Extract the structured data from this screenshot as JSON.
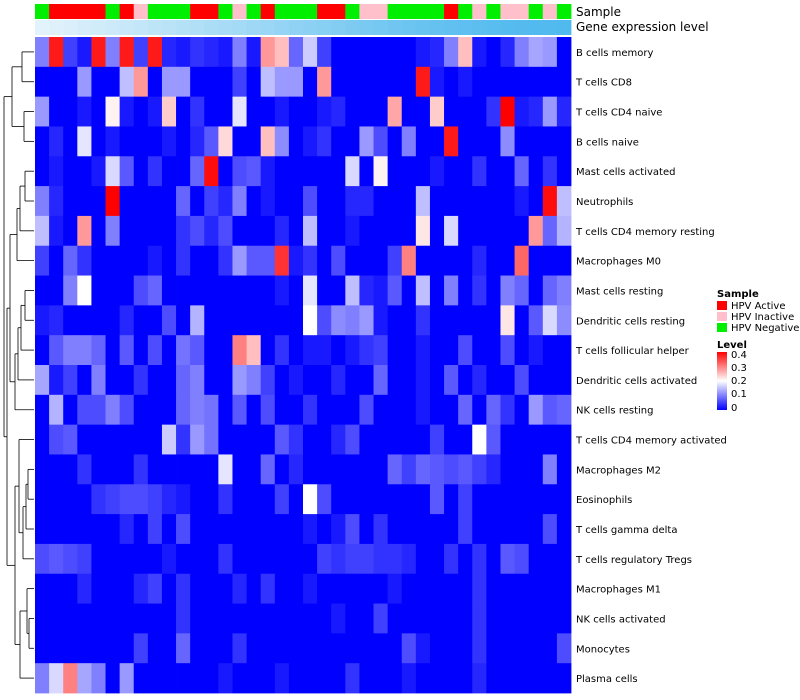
{
  "chart_data": {
    "type": "heatmap",
    "title": "",
    "annotation_tracks": {
      "sample_label": "Sample",
      "gene_label": "Gene expression level"
    },
    "rows": [
      "B cells memory",
      "T cells CD8",
      "T cells CD4 naive",
      "B cells naive",
      "Mast cells activated",
      "Neutrophils",
      "T cells CD4 memory resting",
      "Macrophages M0",
      "Mast cells resting",
      "Dendritic cells resting",
      "T cells follicular helper",
      "Dendritic cells activated",
      "NK cells resting",
      "T cells CD4 memory activated",
      "Macrophages M2",
      "Eosinophils",
      "T cells gamma delta",
      "T cells regulatory  Tregs",
      "Macrophages M1",
      "NK cells activated",
      "Monocytes",
      "Plasma cells"
    ],
    "sample_groups": [
      "HPV Negative",
      "HPV Active",
      "HPV Active",
      "HPV Active",
      "HPV Active",
      "HPV Negative",
      "HPV Active",
      "HPV Inactive",
      "HPV Negative",
      "HPV Negative",
      "HPV Negative",
      "HPV Active",
      "HPV Active",
      "HPV Negative",
      "HPV Inactive",
      "HPV Negative",
      "HPV Active",
      "HPV Negative",
      "HPV Negative",
      "HPV Negative",
      "HPV Active",
      "HPV Active",
      "HPV Negative",
      "HPV Inactive",
      "HPV Inactive",
      "HPV Negative",
      "HPV Negative",
      "HPV Negative",
      "HPV Negative",
      "HPV Active",
      "HPV Negative",
      "HPV Inactive",
      "HPV Negative",
      "HPV Inactive",
      "HPV Inactive",
      "HPV Negative",
      "HPV Inactive",
      "HPV Negative"
    ],
    "gene_expression_level": [
      0.02,
      0.05,
      0.08,
      0.11,
      0.14,
      0.17,
      0.2,
      0.23,
      0.26,
      0.29,
      0.32,
      0.35,
      0.38,
      0.41,
      0.44,
      0.47,
      0.5,
      0.53,
      0.56,
      0.59,
      0.62,
      0.65,
      0.68,
      0.71,
      0.74,
      0.77,
      0.8,
      0.82,
      0.84,
      0.86,
      0.88,
      0.9,
      0.92,
      0.94,
      0.95,
      0.96,
      0.97,
      0.98
    ],
    "values": [
      [
        0.1,
        0.38,
        0.05,
        0.02,
        0.38,
        0.1,
        0.38,
        0.05,
        0.38,
        0.03,
        0.02,
        0.04,
        0.03,
        0.02,
        0.1,
        0.02,
        0.28,
        0.25,
        0.08,
        0.16,
        0.05,
        0.0,
        0.0,
        0.0,
        0.0,
        0.0,
        0.0,
        0.02,
        0.03,
        0.1,
        0.25,
        0.02,
        0.0,
        0.03,
        0.1,
        0.13,
        0.12,
        0.0
      ],
      [
        0.0,
        0.0,
        0.0,
        0.12,
        0.0,
        0.0,
        0.15,
        0.28,
        0.0,
        0.12,
        0.12,
        0.0,
        0.0,
        0.0,
        0.05,
        0.0,
        0.15,
        0.12,
        0.12,
        0.0,
        0.28,
        0.0,
        0.0,
        0.0,
        0.0,
        0.0,
        0.0,
        0.38,
        0.02,
        0.0,
        0.02,
        0.0,
        0.0,
        0.0,
        0.0,
        0.0,
        0.0,
        0.0
      ],
      [
        0.12,
        0.0,
        0.0,
        0.02,
        0.0,
        0.21,
        0.02,
        0.0,
        0.02,
        0.24,
        0.0,
        0.04,
        0.0,
        0.0,
        0.18,
        0.0,
        0.0,
        0.02,
        0.0,
        0.0,
        0.02,
        0.03,
        0.0,
        0.0,
        0.0,
        0.27,
        0.0,
        0.0,
        0.24,
        0.0,
        0.0,
        0.0,
        0.04,
        0.4,
        0.02,
        0.03,
        0.12,
        0.03
      ],
      [
        0.0,
        0.03,
        0.0,
        0.18,
        0.0,
        0.02,
        0.0,
        0.0,
        0.0,
        0.02,
        0.0,
        0.03,
        0.07,
        0.23,
        0.0,
        0.0,
        0.25,
        0.11,
        0.0,
        0.02,
        0.04,
        0.0,
        0.0,
        0.12,
        0.06,
        0.0,
        0.1,
        0.0,
        0.0,
        0.38,
        0.0,
        0.0,
        0.0,
        0.11,
        0.0,
        0.0,
        0.0,
        0.0
      ],
      [
        0.0,
        0.02,
        0.0,
        0.0,
        0.02,
        0.17,
        0.07,
        0.0,
        0.04,
        0.0,
        0.0,
        0.08,
        0.39,
        0.0,
        0.06,
        0.07,
        0.02,
        0.0,
        0.0,
        0.0,
        0.0,
        0.0,
        0.17,
        0.0,
        0.21,
        0.0,
        0.0,
        0.0,
        0.02,
        0.0,
        0.0,
        0.04,
        0.0,
        0.0,
        0.08,
        0.0,
        0.04,
        0.0
      ],
      [
        0.1,
        0.03,
        0.0,
        0.0,
        0.0,
        0.4,
        0.0,
        0.0,
        0.0,
        0.0,
        0.08,
        0.0,
        0.05,
        0.03,
        0.1,
        0.0,
        0.02,
        0.0,
        0.0,
        0.06,
        0.0,
        0.0,
        0.03,
        0.03,
        0.0,
        0.0,
        0.0,
        0.15,
        0.0,
        0.0,
        0.0,
        0.0,
        0.0,
        0.0,
        0.02,
        0.0,
        0.39,
        0.15
      ],
      [
        0.15,
        0.02,
        0.0,
        0.28,
        0.0,
        0.1,
        0.0,
        0.0,
        0.0,
        0.0,
        0.04,
        0.06,
        0.03,
        0.06,
        0.0,
        0.0,
        0.0,
        0.03,
        0.0,
        0.15,
        0.0,
        0.0,
        0.02,
        0.0,
        0.0,
        0.0,
        0.0,
        0.22,
        0.0,
        0.17,
        0.0,
        0.0,
        0.0,
        0.0,
        0.0,
        0.28,
        0.08,
        0.14
      ],
      [
        0.05,
        0.0,
        0.08,
        0.04,
        0.0,
        0.0,
        0.0,
        0.0,
        0.02,
        0.0,
        0.04,
        0.0,
        0.0,
        0.04,
        0.12,
        0.07,
        0.07,
        0.36,
        0.02,
        0.04,
        0.0,
        0.06,
        0.0,
        0.0,
        0.0,
        0.05,
        0.3,
        0.0,
        0.0,
        0.0,
        0.0,
        0.03,
        0.0,
        0.0,
        0.32,
        0.0,
        0.0,
        0.0
      ],
      [
        0.0,
        0.0,
        0.1,
        0.2,
        0.0,
        0.0,
        0.0,
        0.06,
        0.08,
        0.0,
        0.0,
        0.0,
        0.0,
        0.0,
        0.0,
        0.0,
        0.0,
        0.02,
        0.0,
        0.18,
        0.0,
        0.0,
        0.15,
        0.03,
        0.02,
        0.07,
        0.0,
        0.15,
        0.0,
        0.1,
        0.0,
        0.04,
        0.0,
        0.1,
        0.08,
        0.0,
        0.08,
        0.1
      ],
      [
        0.02,
        0.03,
        0.0,
        0.0,
        0.0,
        0.0,
        0.03,
        0.0,
        0.0,
        0.06,
        0.0,
        0.14,
        0.0,
        0.0,
        0.0,
        0.0,
        0.0,
        0.0,
        0.0,
        0.2,
        0.06,
        0.11,
        0.1,
        0.12,
        0.02,
        0.0,
        0.0,
        0.04,
        0.0,
        0.0,
        0.0,
        0.0,
        0.0,
        0.22,
        0.0,
        0.07,
        0.17,
        0.11
      ],
      [
        0.0,
        0.07,
        0.1,
        0.1,
        0.08,
        0.0,
        0.07,
        0.0,
        0.06,
        0.0,
        0.09,
        0.07,
        0.0,
        0.0,
        0.3,
        0.25,
        0.0,
        0.04,
        0.0,
        0.02,
        0.02,
        0.0,
        0.02,
        0.04,
        0.05,
        0.0,
        0.0,
        0.02,
        0.0,
        0.0,
        0.06,
        0.0,
        0.0,
        0.06,
        0.0,
        0.02,
        0.0,
        0.0
      ],
      [
        0.13,
        0.02,
        0.05,
        0.0,
        0.1,
        0.0,
        0.0,
        0.04,
        0.0,
        0.0,
        0.08,
        0.1,
        0.0,
        0.0,
        0.12,
        0.1,
        0.05,
        0.0,
        0.02,
        0.0,
        0.0,
        0.03,
        0.0,
        0.0,
        0.08,
        0.0,
        0.0,
        0.02,
        0.0,
        0.07,
        0.0,
        0.03,
        0.0,
        0.0,
        0.06,
        0.0,
        0.0,
        0.0
      ],
      [
        0.0,
        0.14,
        0.0,
        0.06,
        0.06,
        0.1,
        0.06,
        0.0,
        0.0,
        0.0,
        0.08,
        0.1,
        0.09,
        0.0,
        0.07,
        0.0,
        0.06,
        0.0,
        0.0,
        0.04,
        0.0,
        0.0,
        0.0,
        0.06,
        0.0,
        0.0,
        0.0,
        0.02,
        0.0,
        0.0,
        0.08,
        0.0,
        0.08,
        0.04,
        0.0,
        0.12,
        0.07,
        0.08
      ],
      [
        0.0,
        0.06,
        0.07,
        0.0,
        0.0,
        0.0,
        0.0,
        0.0,
        0.0,
        0.16,
        0.04,
        0.12,
        0.09,
        0.0,
        0.0,
        0.0,
        0.0,
        0.07,
        0.04,
        0.0,
        0.0,
        0.03,
        0.06,
        0.0,
        0.0,
        0.0,
        0.0,
        0.0,
        0.05,
        0.0,
        0.0,
        0.2,
        0.07,
        0.0,
        0.0,
        0.0,
        0.0,
        0.0
      ],
      [
        0.0,
        0.0,
        0.0,
        0.04,
        0.0,
        0.0,
        0.0,
        0.04,
        0.0,
        0.0,
        0.0,
        0.0,
        0.0,
        0.18,
        0.0,
        0.0,
        0.08,
        0.0,
        0.03,
        0.0,
        0.0,
        0.0,
        0.0,
        0.0,
        0.0,
        0.08,
        0.05,
        0.08,
        0.07,
        0.06,
        0.07,
        0.05,
        0.03,
        0.0,
        0.0,
        0.0,
        0.1,
        0.0
      ],
      [
        0.0,
        0.0,
        0.0,
        0.0,
        0.04,
        0.05,
        0.06,
        0.06,
        0.05,
        0.03,
        0.02,
        0.0,
        0.0,
        0.04,
        0.0,
        0.0,
        0.0,
        0.05,
        0.0,
        0.2,
        0.06,
        0.0,
        0.0,
        0.0,
        0.0,
        0.0,
        0.0,
        0.0,
        0.07,
        0.0,
        0.05,
        0.0,
        0.0,
        0.0,
        0.0,
        0.0,
        0.0,
        0.0
      ],
      [
        0.0,
        0.0,
        0.0,
        0.0,
        0.0,
        0.0,
        0.03,
        0.0,
        0.05,
        0.0,
        0.06,
        0.0,
        0.0,
        0.0,
        0.0,
        0.0,
        0.0,
        0.0,
        0.0,
        0.02,
        0.0,
        0.02,
        0.06,
        0.0,
        0.04,
        0.0,
        0.0,
        0.0,
        0.0,
        0.0,
        0.05,
        0.0,
        0.0,
        0.0,
        0.0,
        0.0,
        0.06,
        0.0
      ],
      [
        0.06,
        0.07,
        0.06,
        0.05,
        0.0,
        0.0,
        0.0,
        0.0,
        0.0,
        0.02,
        0.0,
        0.0,
        0.0,
        0.04,
        0.0,
        0.0,
        0.0,
        0.0,
        0.0,
        0.0,
        0.05,
        0.04,
        0.05,
        0.05,
        0.04,
        0.04,
        0.03,
        0.0,
        0.0,
        0.04,
        0.0,
        0.04,
        0.0,
        0.07,
        0.06,
        0.0,
        0.0,
        0.0
      ],
      [
        0.0,
        0.0,
        0.0,
        0.03,
        0.0,
        0.0,
        0.0,
        0.03,
        0.05,
        0.0,
        0.04,
        0.0,
        0.0,
        0.0,
        0.03,
        0.0,
        0.04,
        0.0,
        0.0,
        0.02,
        0.0,
        0.0,
        0.0,
        0.0,
        0.0,
        0.02,
        0.0,
        0.0,
        0.0,
        0.0,
        0.0,
        0.04,
        0.0,
        0.0,
        0.0,
        0.0,
        0.0,
        0.0
      ],
      [
        0.0,
        0.0,
        0.0,
        0.0,
        0.0,
        0.0,
        0.0,
        0.0,
        0.0,
        0.0,
        0.04,
        0.0,
        0.0,
        0.0,
        0.0,
        0.0,
        0.0,
        0.0,
        0.0,
        0.0,
        0.0,
        0.02,
        0.0,
        0.0,
        0.05,
        0.0,
        0.0,
        0.0,
        0.0,
        0.0,
        0.0,
        0.04,
        0.0,
        0.0,
        0.0,
        0.0,
        0.0,
        0.0
      ],
      [
        0.0,
        0.0,
        0.0,
        0.0,
        0.0,
        0.0,
        0.0,
        0.05,
        0.0,
        0.0,
        0.08,
        0.0,
        0.0,
        0.0,
        0.04,
        0.0,
        0.0,
        0.0,
        0.0,
        0.0,
        0.0,
        0.0,
        0.0,
        0.0,
        0.0,
        0.0,
        0.06,
        0.02,
        0.0,
        0.0,
        0.0,
        0.04,
        0.0,
        0.0,
        0.0,
        0.0,
        0.0,
        0.06
      ],
      [
        0.1,
        0.17,
        0.3,
        0.13,
        0.1,
        0.0,
        0.12,
        0.0,
        0.0,
        0.0,
        0.0,
        0.0,
        0.0,
        0.02,
        0.0,
        0.0,
        0.0,
        0.02,
        0.0,
        0.0,
        0.0,
        0.0,
        0.04,
        0.0,
        0.0,
        0.0,
        0.02,
        0.0,
        0.0,
        0.0,
        0.0,
        0.03,
        0.0,
        0.0,
        0.0,
        0.0,
        0.0,
        0.0
      ]
    ],
    "color_scale": {
      "title": "Level",
      "ticks": [
        "0.4",
        "0.3",
        "0.2",
        "0.1",
        "0"
      ],
      "min": 0,
      "max": 0.4,
      "low_color": "#0000ff",
      "mid_color": "#ffffff",
      "high_color": "#ff0000"
    },
    "sample_legend": {
      "title": "Sample",
      "entries": [
        {
          "label": "HPV Active",
          "color": "#ff0000"
        },
        {
          "label": "HPV Inactive",
          "color": "#ffc0cb"
        },
        {
          "label": "HPV Negative",
          "color": "#00ee00"
        }
      ]
    },
    "gene_colors": {
      "low": "#e6f4fb",
      "high": "#4db8ee"
    }
  }
}
